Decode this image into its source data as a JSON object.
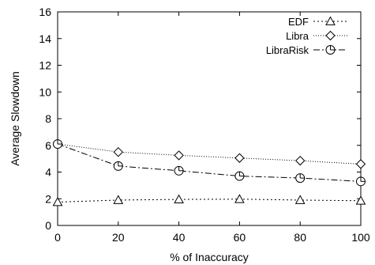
{
  "chart_data": {
    "type": "line",
    "title": "",
    "xlabel": "% of Inaccuracy",
    "ylabel": "Average Slowdown",
    "x": [
      0,
      20,
      40,
      60,
      80,
      100
    ],
    "xlim": [
      0,
      100
    ],
    "ylim": [
      0,
      16
    ],
    "xticks": [
      "0",
      "20",
      "40",
      "60",
      "80",
      "100"
    ],
    "yticks": [
      "0",
      "2",
      "4",
      "6",
      "8",
      "10",
      "12",
      "14",
      "16"
    ],
    "grid": false,
    "legend_position": "top-right",
    "series": [
      {
        "name": "EDF",
        "marker": "triangle",
        "dash": "dotted",
        "values": [
          1.75,
          1.9,
          1.95,
          1.97,
          1.9,
          1.85
        ]
      },
      {
        "name": "Libra",
        "marker": "diamond",
        "dash": "fine-dotted",
        "values": [
          6.1,
          5.5,
          5.25,
          5.05,
          4.85,
          4.6
        ]
      },
      {
        "name": "LibraRisk",
        "marker": "circle",
        "dash": "dash-dot",
        "values": [
          6.1,
          4.45,
          4.1,
          3.7,
          3.55,
          3.3
        ]
      }
    ]
  }
}
